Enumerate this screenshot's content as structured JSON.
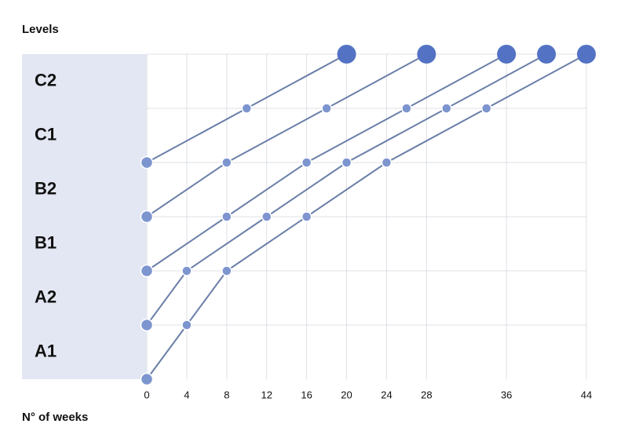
{
  "chart_data": {
    "type": "line",
    "y_label": "Levels",
    "x_label": "N° of weeks",
    "levels": [
      "A1",
      "A2",
      "B1",
      "B2",
      "C1",
      "C2"
    ],
    "xlim": [
      0,
      44
    ],
    "ylim": [
      0,
      6
    ],
    "xticks": [
      0,
      4,
      8,
      12,
      16,
      20,
      24,
      28,
      36,
      44
    ],
    "grid": true,
    "line_color": "#6a7fa8",
    "point_color": "#7d95cf",
    "end_color": "#5472c4",
    "band_color": "#e3e7f3",
    "series": [
      {
        "x": [
          0,
          10,
          20
        ],
        "values": [
          4,
          5,
          6
        ]
      },
      {
        "x": [
          0,
          8,
          18,
          28
        ],
        "values": [
          3,
          4,
          5,
          6
        ]
      },
      {
        "x": [
          0,
          8,
          16,
          26,
          36
        ],
        "values": [
          2,
          3,
          4,
          5,
          6
        ]
      },
      {
        "x": [
          0,
          4,
          12,
          20,
          30,
          40
        ],
        "values": [
          1,
          2,
          3,
          4,
          5,
          6
        ]
      },
      {
        "x": [
          0,
          4,
          8,
          16,
          24,
          34,
          44
        ],
        "values": [
          0,
          1,
          2,
          3,
          4,
          5,
          6
        ]
      }
    ]
  }
}
